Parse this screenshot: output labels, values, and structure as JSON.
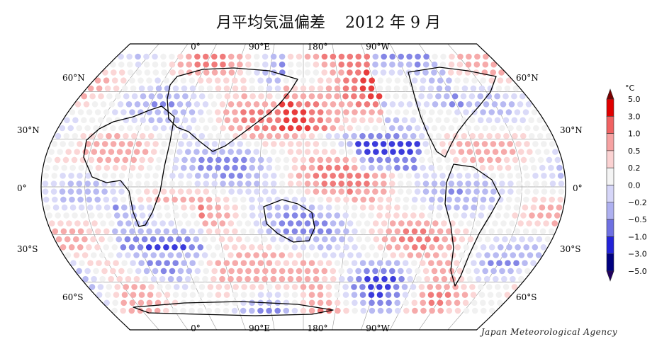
{
  "title": "月平均気温偏差    2012 年 9 月",
  "map": {
    "projection": "Robinson",
    "center_longitude": 150,
    "top_longitude_labels": [
      "0°",
      "90°E",
      "180°",
      "90°W"
    ],
    "bottom_longitude_labels": [
      "0°",
      "90°E",
      "180°",
      "90°W"
    ],
    "left_latitude_labels": [
      "60°N",
      "30°N",
      "0°",
      "30°S",
      "60°S"
    ],
    "right_latitude_labels": [
      "60°N",
      "30°N",
      "0°",
      "30°S",
      "60°S"
    ]
  },
  "legend": {
    "unit": "°C",
    "ticks": [
      "5.0",
      "3.0",
      "1.0",
      "0.5",
      "0.2",
      "0.0",
      "−0.2",
      "−0.5",
      "−1.0",
      "−3.0",
      "−5.0"
    ],
    "colors": [
      "#7a0000",
      "#e00000",
      "#f06262",
      "#f6a2a2",
      "#fbd2d2",
      "#f4f4f4",
      "#d6d6f8",
      "#aeb0f0",
      "#6e70e2",
      "#2222d8",
      "#000080",
      "#200060"
    ]
  },
  "credit": "Japan Meteorological Agency"
}
